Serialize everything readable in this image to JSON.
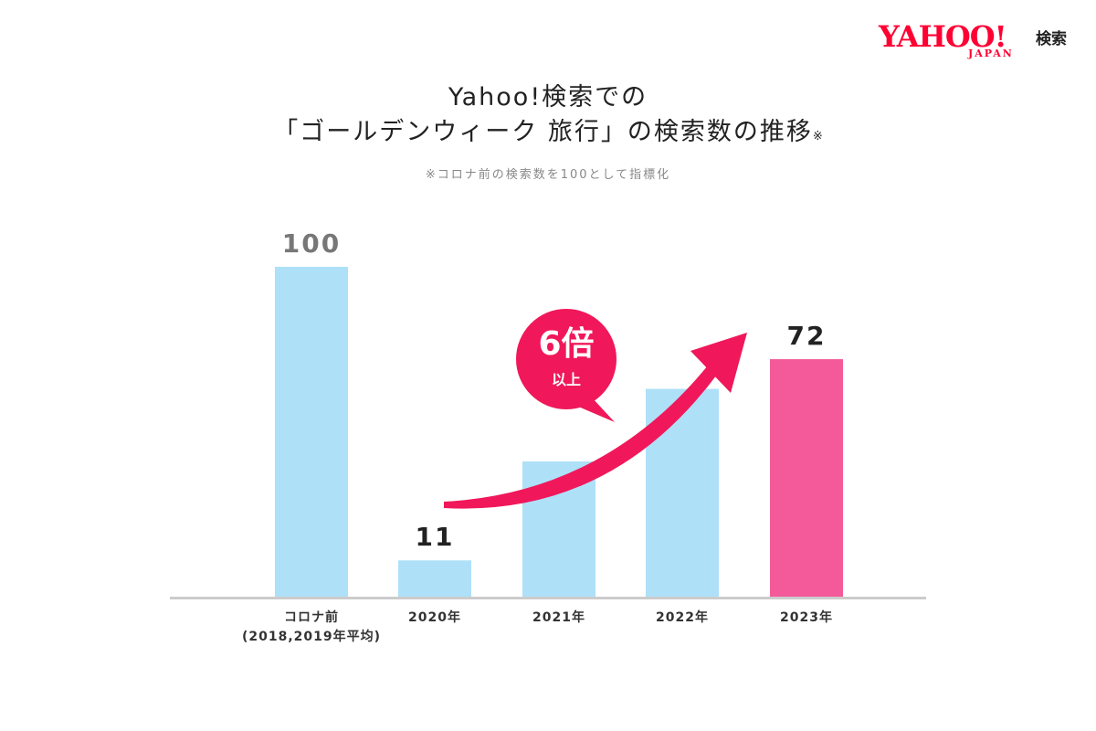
{
  "logo": {
    "brand": "YAHOO!",
    "sub": "JAPAN",
    "suffix": "検索"
  },
  "title": {
    "line1": "Yahoo!検索での",
    "line2": "「ゴールデンウィーク 旅行」の検索数の推移",
    "note_mark": "※"
  },
  "subtitle": "※コロナ前の検索数を100として指標化",
  "badge": {
    "main": "6倍",
    "sub": "以上"
  },
  "colors": {
    "bar": "#aee0f8",
    "highlight": "#f45a9a",
    "arrow": "#f0185a",
    "axis": "#cccccc",
    "value_muted": "#777777",
    "value_dark": "#222222"
  },
  "chart_data": {
    "type": "bar",
    "categories": [
      "コロナ前\n(2018,2019年平均)",
      "2020年",
      "2021年",
      "2022年",
      "2023年"
    ],
    "values": [
      100,
      11,
      41,
      63,
      72
    ],
    "data_labels": [
      "100",
      "11",
      "",
      "",
      "72"
    ],
    "highlight_index": 4,
    "ylim": [
      0,
      100
    ],
    "grid": false,
    "xlabel": "",
    "ylabel": ""
  }
}
